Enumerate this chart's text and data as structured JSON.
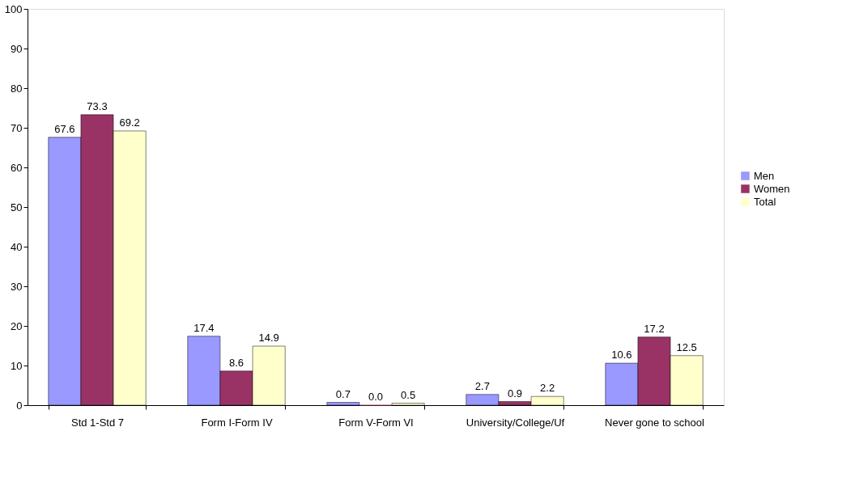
{
  "chart_data": {
    "type": "bar",
    "categories": [
      "Std 1-Std 7",
      "Form I-Form IV",
      "Form V-Form VI",
      "University/College/Uf",
      "Never gone to school"
    ],
    "series": [
      {
        "name": "Men",
        "color": "#9999ff",
        "values": [
          67.6,
          17.4,
          0.7,
          2.7,
          10.6
        ],
        "value_labels": [
          "67.6",
          "17.4",
          "0.7",
          "2.7",
          "10.6"
        ]
      },
      {
        "name": "Women",
        "color": "#993366",
        "values": [
          73.3,
          8.6,
          0.0,
          0.9,
          17.2
        ],
        "value_labels": [
          "73.3",
          "8.6",
          "0.0",
          "0.9",
          "17.2"
        ]
      },
      {
        "name": "Total",
        "color": "#ffffcc",
        "values": [
          69.2,
          14.9,
          0.5,
          2.2,
          12.5
        ],
        "value_labels": [
          "69.2",
          "14.9",
          "0.5",
          "2.2",
          "12.5"
        ]
      }
    ],
    "ylim": [
      0,
      100
    ],
    "yticks": [
      0,
      10,
      20,
      30,
      40,
      50,
      60,
      70,
      80,
      90,
      100
    ],
    "grid": false,
    "legend": "right"
  }
}
